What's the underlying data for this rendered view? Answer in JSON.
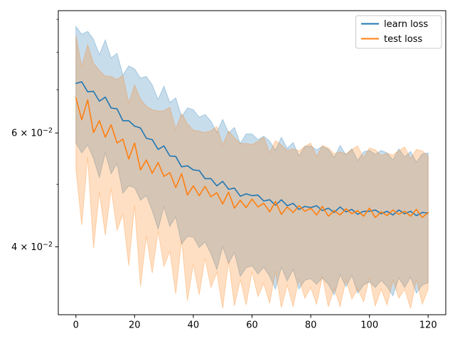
{
  "chart_data": {
    "type": "line",
    "title": "",
    "xlabel": "",
    "ylabel": "",
    "yscale": "log",
    "grid": false,
    "xlim": [
      -6,
      126
    ],
    "ylim": [
      0.0314,
      0.0928
    ],
    "x_ticks": [
      {
        "v": 0,
        "label": "0"
      },
      {
        "v": 20,
        "label": "20"
      },
      {
        "v": 40,
        "label": "40"
      },
      {
        "v": 60,
        "label": "60"
      },
      {
        "v": 80,
        "label": "80"
      },
      {
        "v": 100,
        "label": "100"
      },
      {
        "v": 120,
        "label": "120"
      }
    ],
    "y_major_ticks": [
      {
        "value": 0.06,
        "prefix": "6 × 10",
        "exp": "−2",
        "label": "6 × 10⁻²"
      },
      {
        "value": 0.04,
        "prefix": "4 × 10",
        "exp": "−2",
        "label": "4 × 10⁻²"
      }
    ],
    "y_minor_ticks": [
      0.09,
      0.08,
      0.07,
      0.05
    ],
    "legend": {
      "position": "upper right",
      "entries": [
        {
          "label": "learn loss",
          "color": "#1f77b4"
        },
        {
          "label": "test loss",
          "color": "#ff7f0e"
        }
      ]
    },
    "colors": {
      "learn": "#1f77b4",
      "test": "#ff7f0e",
      "spine": "#000000",
      "legend_border": "#c9c9c9"
    },
    "x": [
      0,
      2,
      4,
      6,
      8,
      10,
      12,
      14,
      16,
      18,
      20,
      22,
      24,
      26,
      28,
      30,
      32,
      34,
      36,
      38,
      40,
      42,
      44,
      46,
      48,
      50,
      52,
      54,
      56,
      58,
      60,
      62,
      64,
      66,
      68,
      70,
      72,
      74,
      76,
      78,
      80,
      82,
      84,
      86,
      88,
      90,
      92,
      94,
      96,
      98,
      100,
      102,
      104,
      106,
      108,
      110,
      112,
      114,
      116,
      118,
      120
    ],
    "series": [
      {
        "name": "learn loss",
        "color": "#1f77b4",
        "band_opacity": 0.25,
        "values": [
          0.0716,
          0.072,
          0.0695,
          0.0696,
          0.0672,
          0.0682,
          0.0656,
          0.0654,
          0.0627,
          0.0627,
          0.0615,
          0.0611,
          0.0589,
          0.0586,
          0.0566,
          0.0573,
          0.0553,
          0.0552,
          0.0532,
          0.0534,
          0.0526,
          0.0525,
          0.051,
          0.051,
          0.0497,
          0.0505,
          0.0491,
          0.0493,
          0.0479,
          0.0483,
          0.048,
          0.0481,
          0.0471,
          0.0473,
          0.0464,
          0.0473,
          0.0463,
          0.0467,
          0.0457,
          0.0462,
          0.046,
          0.0463,
          0.0455,
          0.0459,
          0.0452,
          0.0461,
          0.0453,
          0.0457,
          0.0449,
          0.0454,
          0.0454,
          0.0456,
          0.045,
          0.0454,
          0.0448,
          0.0456,
          0.045,
          0.0454,
          0.0447,
          0.0452,
          0.0451
        ],
        "band_upper": [
          0.0877,
          0.0853,
          0.0862,
          0.0838,
          0.0793,
          0.0836,
          0.0784,
          0.0797,
          0.0738,
          0.0762,
          0.0754,
          0.073,
          0.0734,
          0.0712,
          0.0676,
          0.0709,
          0.0669,
          0.068,
          0.0636,
          0.0656,
          0.0652,
          0.0635,
          0.0641,
          0.0626,
          0.0601,
          0.063,
          0.06,
          0.0612,
          0.0578,
          0.0598,
          0.0598,
          0.0586,
          0.0593,
          0.0583,
          0.0564,
          0.0591,
          0.0568,
          0.058,
          0.0553,
          0.0572,
          0.0573,
          0.0565,
          0.0572,
          0.0566,
          0.055,
          0.0574,
          0.0555,
          0.0567,
          0.0544,
          0.0561,
          0.0564,
          0.0556,
          0.0564,
          0.0559,
          0.0545,
          0.0567,
          0.0551,
          0.0562,
          0.0541,
          0.0557,
          0.0559
        ],
        "band_lower": [
          0.0579,
          0.0559,
          0.0575,
          0.0548,
          0.0512,
          0.0559,
          0.0519,
          0.0538,
          0.0484,
          0.0497,
          0.0494,
          0.0472,
          0.048,
          0.0455,
          0.0426,
          0.0461,
          0.043,
          0.0445,
          0.0404,
          0.0415,
          0.0414,
          0.0399,
          0.0407,
          0.039,
          0.0369,
          0.04,
          0.0377,
          0.0392,
          0.036,
          0.0371,
          0.0374,
          0.0363,
          0.0372,
          0.036,
          0.0344,
          0.0372,
          0.0354,
          0.0369,
          0.0344,
          0.0355,
          0.0357,
          0.035,
          0.0358,
          0.035,
          0.0337,
          0.0362,
          0.0347,
          0.0361,
          0.0339,
          0.0349,
          0.0353,
          0.0346,
          0.0355,
          0.0347,
          0.0336,
          0.0358,
          0.0346,
          0.0359,
          0.0339,
          0.0349,
          0.0352
        ]
      },
      {
        "name": "test loss",
        "color": "#ff7f0e",
        "band_opacity": 0.25,
        "values": [
          0.068,
          0.0629,
          0.0675,
          0.0601,
          0.0627,
          0.0591,
          0.0618,
          0.0579,
          0.0587,
          0.0547,
          0.0579,
          0.0526,
          0.0545,
          0.052,
          0.054,
          0.0514,
          0.0521,
          0.0494,
          0.0519,
          0.0481,
          0.0497,
          0.048,
          0.0496,
          0.0478,
          0.0485,
          0.0466,
          0.0486,
          0.0459,
          0.0472,
          0.046,
          0.0474,
          0.0461,
          0.0467,
          0.0453,
          0.047,
          0.0449,
          0.0461,
          0.0452,
          0.0463,
          0.0454,
          0.0459,
          0.0448,
          0.0462,
          0.0446,
          0.0455,
          0.0448,
          0.0458,
          0.045,
          0.0455,
          0.0446,
          0.0459,
          0.0444,
          0.0453,
          0.0447,
          0.0456,
          0.0449,
          0.0454,
          0.0446,
          0.0457,
          0.0444,
          0.0452
        ],
        "band_upper": [
          0.0849,
          0.076,
          0.0822,
          0.0769,
          0.075,
          0.0735,
          0.0734,
          0.0726,
          0.0737,
          0.0668,
          0.0712,
          0.0677,
          0.066,
          0.0652,
          0.0649,
          0.0649,
          0.0658,
          0.0608,
          0.0643,
          0.062,
          0.0606,
          0.0604,
          0.0601,
          0.0605,
          0.0614,
          0.0575,
          0.0604,
          0.059,
          0.0578,
          0.0578,
          0.0576,
          0.0582,
          0.0591,
          0.0559,
          0.0584,
          0.0575,
          0.0564,
          0.0567,
          0.0563,
          0.0572,
          0.0579,
          0.0552,
          0.0574,
          0.0569,
          0.0557,
          0.0561,
          0.0557,
          0.0566,
          0.0573,
          0.0549,
          0.0569,
          0.0565,
          0.0554,
          0.0558,
          0.0555,
          0.0563,
          0.0571,
          0.0548,
          0.0566,
          0.0563,
          0.0553
        ],
        "band_lower": [
          0.0527,
          0.0432,
          0.0551,
          0.0398,
          0.0486,
          0.0417,
          0.0492,
          0.0424,
          0.0449,
          0.0374,
          0.0464,
          0.0347,
          0.0416,
          0.0364,
          0.0423,
          0.0373,
          0.0394,
          0.0338,
          0.041,
          0.033,
          0.0376,
          0.0337,
          0.0384,
          0.0346,
          0.0365,
          0.0321,
          0.038,
          0.0324,
          0.0356,
          0.0325,
          0.0366,
          0.0335,
          0.0351,
          0.0327,
          0.0367,
          0.0322,
          0.0349,
          0.0323,
          0.0357,
          0.0333,
          0.0346,
          0.0326,
          0.036,
          0.0323,
          0.0345,
          0.0323,
          0.0356,
          0.0332,
          0.0344,
          0.0329,
          0.0358,
          0.0324,
          0.0344,
          0.0325,
          0.0355,
          0.0333,
          0.0344,
          0.0321,
          0.0356,
          0.0326,
          0.0344
        ]
      }
    ]
  }
}
